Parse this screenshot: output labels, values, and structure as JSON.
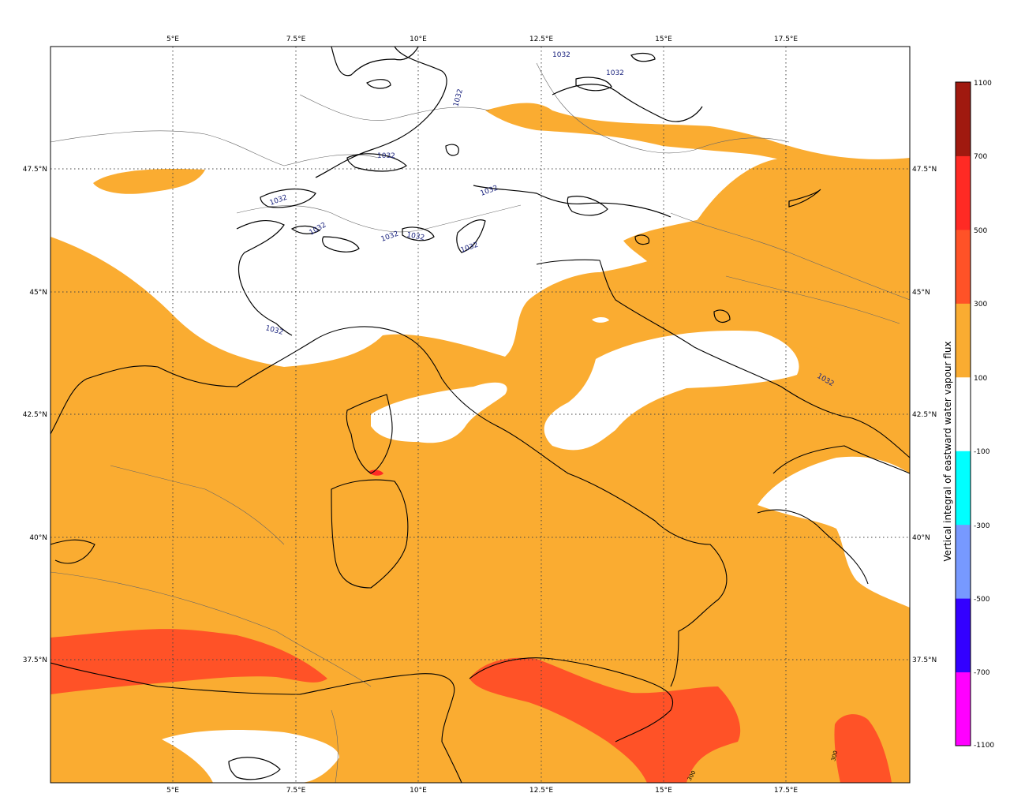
{
  "map": {
    "lon_labels": [
      "5°E",
      "7.5°E",
      "10°E",
      "12.5°E",
      "15°E",
      "17.5°E"
    ],
    "lat_labels": [
      "47.5°N",
      "45°N",
      "42.5°N",
      "40°N",
      "37.5°N"
    ],
    "contour_label": "1032",
    "flux_label": "300",
    "grid": "dotted",
    "field_colors": {
      "background": "#ffffff",
      "band_100_300": "#faac31",
      "band_300_500": "#ff5227",
      "band_500_700": "#ff2a24",
      "coast": "#000000",
      "border": "#666666",
      "contour": "#000000",
      "contour_label": "#1a237e"
    }
  },
  "colorbar": {
    "label": "Vertical integral of eastward water vapour flux",
    "bands": [
      {
        "from": -1100,
        "to": -700,
        "color": "#ff00ff"
      },
      {
        "from": -700,
        "to": -500,
        "color": "#3300ff"
      },
      {
        "from": -500,
        "to": -300,
        "color": "#7799ff"
      },
      {
        "from": -300,
        "to": -100,
        "color": "#00ffff"
      },
      {
        "from": -100,
        "to": 100,
        "color": "#ffffff"
      },
      {
        "from": 100,
        "to": 300,
        "color": "#faac31"
      },
      {
        "from": 300,
        "to": 500,
        "color": "#ff5227"
      },
      {
        "from": 500,
        "to": 700,
        "color": "#ff2a24"
      },
      {
        "from": 700,
        "to": 1100,
        "color": "#a0190f"
      }
    ],
    "tick_labels": [
      "1100",
      "700",
      "500",
      "300",
      "100",
      "-100",
      "-300",
      "-500",
      "-700",
      "-1100"
    ]
  }
}
